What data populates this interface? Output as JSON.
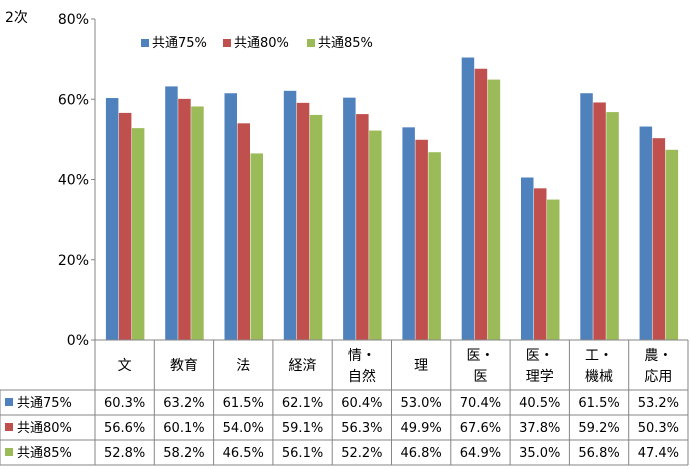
{
  "chart_data": {
    "type": "bar",
    "ylabel": "2次",
    "ylim": [
      0,
      80
    ],
    "yticks": [
      "0%",
      "20%",
      "40%",
      "60%",
      "80%"
    ],
    "grid": false,
    "legend_placement": "top-left",
    "categories": [
      [
        "文"
      ],
      [
        "教育"
      ],
      [
        "法"
      ],
      [
        "経済"
      ],
      [
        "情・",
        "自然"
      ],
      [
        "理"
      ],
      [
        "医・",
        "医"
      ],
      [
        "医・",
        "理学"
      ],
      [
        "工・",
        "機械"
      ],
      [
        "農・",
        "応用"
      ]
    ],
    "series": [
      {
        "name": "共通75%",
        "color": "#4f81bd",
        "values": [
          60.3,
          63.2,
          61.5,
          62.1,
          60.4,
          53.0,
          70.4,
          40.5,
          61.5,
          53.2
        ],
        "labels": [
          "60.3%",
          "63.2%",
          "61.5%",
          "62.1%",
          "60.4%",
          "53.0%",
          "70.4%",
          "40.5%",
          "61.5%",
          "53.2%"
        ]
      },
      {
        "name": "共通80%",
        "color": "#c0504d",
        "values": [
          56.6,
          60.1,
          54.0,
          59.1,
          56.3,
          49.9,
          67.6,
          37.8,
          59.2,
          50.3
        ],
        "labels": [
          "56.6%",
          "60.1%",
          "54.0%",
          "59.1%",
          "56.3%",
          "49.9%",
          "67.6%",
          "37.8%",
          "59.2%",
          "50.3%"
        ]
      },
      {
        "name": "共通85%",
        "color": "#9bbb59",
        "values": [
          52.8,
          58.2,
          46.5,
          56.1,
          52.2,
          46.8,
          64.9,
          35.0,
          56.8,
          47.4
        ],
        "labels": [
          "52.8%",
          "58.2%",
          "46.5%",
          "56.1%",
          "52.2%",
          "46.8%",
          "64.9%",
          "35.0%",
          "56.8%",
          "47.4%"
        ]
      }
    ]
  }
}
